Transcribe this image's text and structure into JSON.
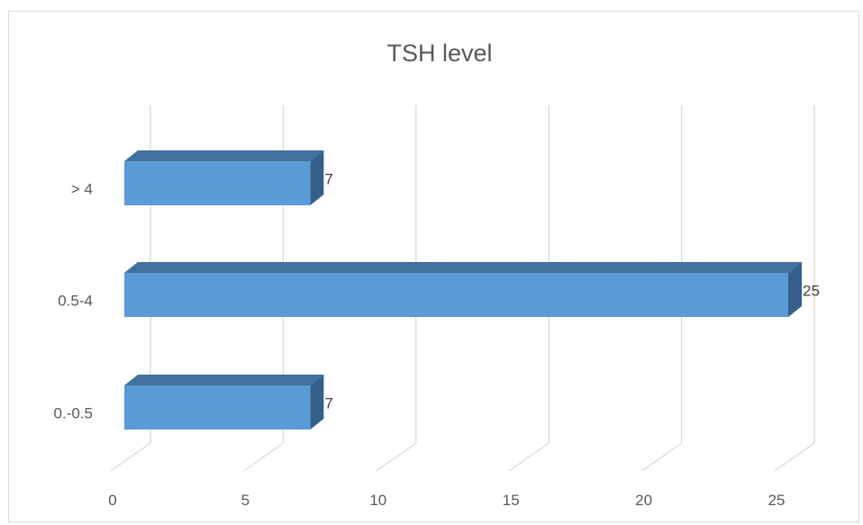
{
  "chart_data": {
    "type": "bar",
    "orientation": "horizontal",
    "style": "3d",
    "title": "TSH level",
    "categories": [
      "0.-0.5",
      "0.5-4",
      "> 4"
    ],
    "values": [
      7,
      25,
      7
    ],
    "data_labels": [
      "7",
      "25",
      "7"
    ],
    "x_ticks": [
      "0",
      "5",
      "10",
      "15",
      "20",
      "25"
    ],
    "xlim": [
      0,
      25
    ],
    "grid": true,
    "legend": "none",
    "colors": {
      "bar_front": "#5b9bd5",
      "bar_top": "#41719c",
      "bar_side": "#335f8a",
      "grid": "#d9d9d9",
      "text": "#595959"
    }
  }
}
